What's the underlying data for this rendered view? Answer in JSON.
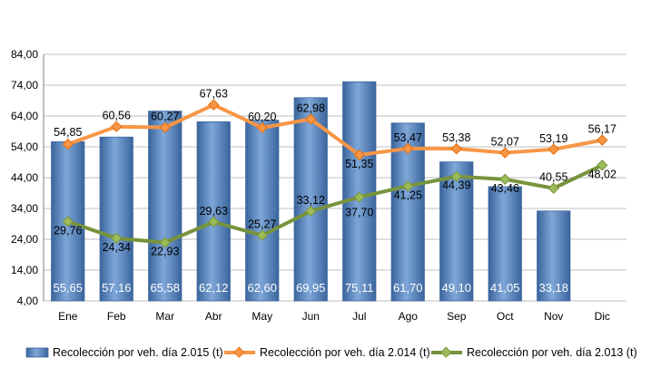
{
  "colors": {
    "bar": "#4F81BD",
    "bar_light": "#7FA7D9",
    "bar_dark": "#3A659C",
    "line_2014": "#F79646",
    "line_2013": "#77933C",
    "marker_2013": "#9BBB59",
    "grid": "#BFBFBF",
    "axis": "#808080"
  },
  "chart_data": {
    "type": "bar+line",
    "categories": [
      "Ene",
      "Feb",
      "Mar",
      "Abr",
      "May",
      "Jun",
      "Jul",
      "Ago",
      "Sep",
      "Oct",
      "Nov",
      "Dic"
    ],
    "yticks": [
      "4,00",
      "14,00",
      "24,00",
      "34,00",
      "44,00",
      "54,00",
      "64,00",
      "74,00",
      "84,00"
    ],
    "ylim": [
      4,
      84
    ],
    "grid": true,
    "legend_position": "bottom",
    "series": [
      {
        "name": "Recolección por veh. día 2.015 (t)",
        "type": "bar",
        "values": [
          55.65,
          57.16,
          65.58,
          62.12,
          62.6,
          69.95,
          75.11,
          61.7,
          49.1,
          41.05,
          33.18,
          null
        ],
        "labels": [
          "55,65",
          "57,16",
          "65,58",
          "62,12",
          "62,60",
          "69,95",
          "75,11",
          "61,70",
          "49,10",
          "41,05",
          "33,18",
          ""
        ]
      },
      {
        "name": "Recolección por veh. día 2.014 (t)",
        "type": "line",
        "values": [
          54.85,
          60.56,
          60.27,
          67.63,
          60.2,
          62.98,
          51.35,
          53.47,
          53.38,
          52.07,
          53.19,
          56.17
        ],
        "labels": [
          "54,85",
          "60,56",
          "60,27",
          "67,63",
          "60,20",
          "62,98",
          "51,35",
          "53,47",
          "53,38",
          "52,07",
          "53,19",
          "56,17"
        ]
      },
      {
        "name": "Recolección por veh. día 2.013 (t)",
        "type": "line",
        "values": [
          29.76,
          24.34,
          22.93,
          29.63,
          25.27,
          33.12,
          37.7,
          41.25,
          44.39,
          43.46,
          40.55,
          48.02
        ],
        "labels": [
          "29,76",
          "24,34",
          "22,93",
          "29,63",
          "25,27",
          "33,12",
          "37,70",
          "41,25",
          "44,39",
          "43,46",
          "40,55",
          "48,02"
        ]
      }
    ]
  }
}
